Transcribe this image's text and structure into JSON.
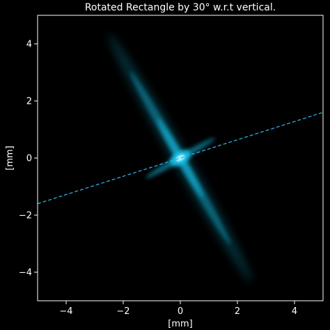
{
  "chart_data": {
    "type": "heatmap",
    "title": "Rotated Rectangle by 30° w.r.t vertical.",
    "xlabel": "[mm]",
    "ylabel": "[mm]",
    "xlim": [
      -5,
      5
    ],
    "ylim": [
      -5,
      5
    ],
    "xticks": [
      -4,
      -2,
      0,
      2,
      4
    ],
    "yticks": [
      -4,
      -2,
      0,
      2,
      4
    ],
    "xtick_labels": [
      "−4",
      "−2",
      "0",
      "2",
      "4"
    ],
    "ytick_labels": [
      "−4",
      "−2",
      "0",
      "2",
      "4"
    ],
    "grid": false,
    "colors": {
      "background": "#000000",
      "intensity": "#19c8f0",
      "dashed_line": "#2ab0e0",
      "axes": "#ffffff"
    },
    "diffraction_pattern": {
      "center": [
        0,
        0
      ],
      "main_streak_angle_deg": 120,
      "main_streak_half_length_mm": 5,
      "cross_streak_angle_deg": 30,
      "cross_streak_half_length_mm": 1.4,
      "fringe_count": 9
    },
    "dashed_line": {
      "x": [
        -5,
        5
      ],
      "y": [
        -1.6,
        1.6
      ]
    }
  }
}
